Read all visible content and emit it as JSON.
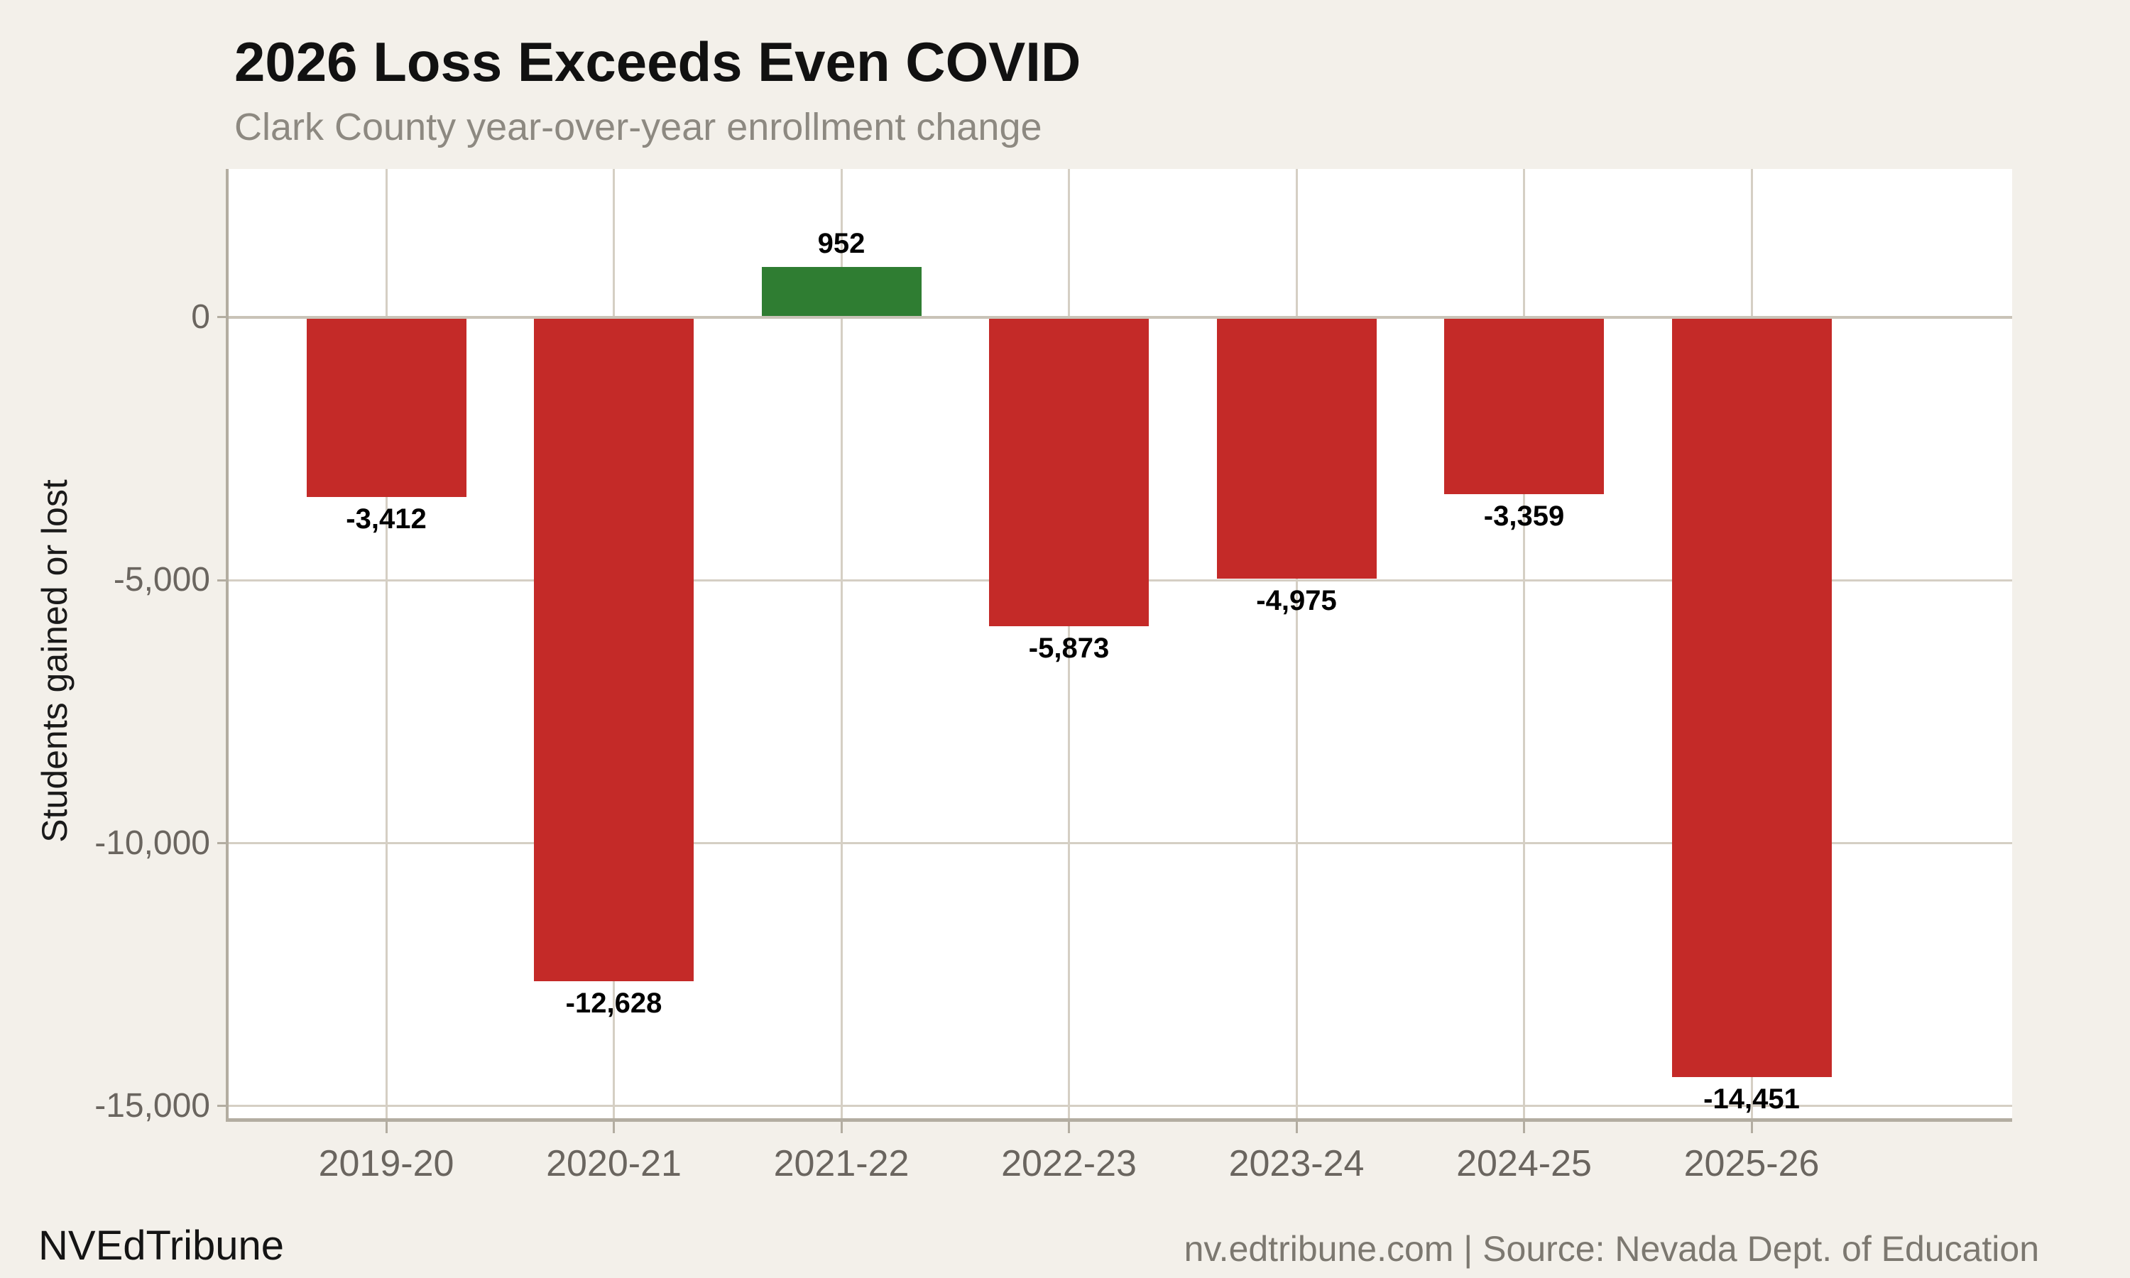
{
  "header": {
    "title": "2026 Loss Exceeds Even COVID",
    "subtitle": "Clark County year-over-year enrollment change"
  },
  "footer": {
    "brand": "NVEdTribune",
    "source": "nv.edtribune.com | Source: Nevada Dept. of Education"
  },
  "colors": {
    "background": "#F3F0EA",
    "plot_background": "#FFFFFF",
    "bar_negative": "#C42A28",
    "bar_positive": "#2F7D32",
    "gridline": "#D5CFC4",
    "zero_line": "#C9C3B7",
    "spine": "#B3ADA1",
    "tick_label": "#6A655F",
    "value_label": "#000000"
  },
  "chart_data": {
    "type": "bar",
    "title": "2026 Loss Exceeds Even COVID",
    "subtitle": "Clark County year-over-year enrollment change",
    "categories": [
      "2019-20",
      "2020-21",
      "2021-22",
      "2022-23",
      "2023-24",
      "2024-25",
      "2025-26"
    ],
    "values": [
      -3412,
      -12628,
      952,
      -5873,
      -4975,
      -3359,
      -14451
    ],
    "value_labels": [
      "-3,412",
      "-12,628",
      "952",
      "-5,873",
      "-4,975",
      "-3,359",
      "-14,451"
    ],
    "xlabel": "",
    "ylabel": "Students gained or lost",
    "yticks": [
      0,
      -5000,
      -10000,
      -15000
    ],
    "ytick_labels": [
      "0",
      "-5,000",
      "-10,000",
      "-15,000"
    ],
    "ylim": [
      -15230,
      2820
    ],
    "grid": true,
    "legend": false
  }
}
